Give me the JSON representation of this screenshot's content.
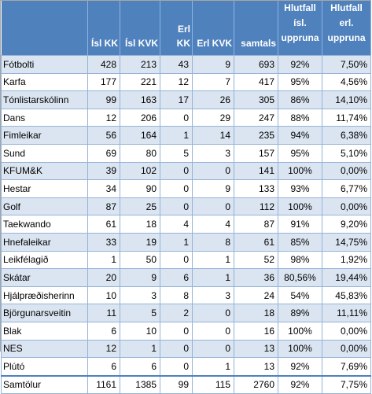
{
  "columns": [
    "",
    "Ísl KK",
    "Ísl KVK",
    "Erl KK",
    "Erl KVK",
    "samtals",
    "Hlutfall ísl. uppruna",
    "Hlutfall erl. uppruna"
  ],
  "col6_lines": [
    "Hlutfall",
    "ísl.",
    "uppruna"
  ],
  "col7_lines": [
    "Hlutfall",
    "erl.",
    "uppruna"
  ],
  "rows": [
    [
      "Fótbolti",
      "428",
      "213",
      "43",
      "9",
      "693",
      "92%",
      "7,50%"
    ],
    [
      "Karfa",
      "177",
      "221",
      "12",
      "7",
      "417",
      "95%",
      "4,56%"
    ],
    [
      "Tónlistarskólinn",
      "99",
      "163",
      "17",
      "26",
      "305",
      "86%",
      "14,10%"
    ],
    [
      "Dans",
      "12",
      "206",
      "0",
      "29",
      "247",
      "88%",
      "11,74%"
    ],
    [
      "Fimleikar",
      "56",
      "164",
      "1",
      "14",
      "235",
      "94%",
      "6,38%"
    ],
    [
      "Sund",
      "69",
      "80",
      "5",
      "3",
      "157",
      "95%",
      "5,10%"
    ],
    [
      "KFUM&K",
      "39",
      "102",
      "0",
      "0",
      "141",
      "100%",
      "0,00%"
    ],
    [
      "Hestar",
      "34",
      "90",
      "0",
      "9",
      "133",
      "93%",
      "6,77%"
    ],
    [
      "Golf",
      "87",
      "25",
      "0",
      "0",
      "112",
      "100%",
      "0,00%"
    ],
    [
      "Taekwando",
      "61",
      "18",
      "4",
      "4",
      "87",
      "91%",
      "9,20%"
    ],
    [
      "Hnefaleikar",
      "33",
      "19",
      "1",
      "8",
      "61",
      "85%",
      "14,75%"
    ],
    [
      "Leikfélagið",
      "1",
      "50",
      "0",
      "1",
      "52",
      "98%",
      "1,92%"
    ],
    [
      "Skátar",
      "20",
      "9",
      "6",
      "1",
      "36",
      "80,56%",
      "19,44%"
    ],
    [
      "Hjálpræðisherinn",
      "10",
      "3",
      "8",
      "3",
      "24",
      "54%",
      "45,83%"
    ],
    [
      "Björgunarsveitin",
      "11",
      "5",
      "2",
      "0",
      "18",
      "89%",
      "11,11%"
    ],
    [
      "Blak",
      "6",
      "10",
      "0",
      "0",
      "16",
      "100%",
      "0,00%"
    ],
    [
      "NES",
      "12",
      "1",
      "0",
      "0",
      "13",
      "100%",
      "0,00%"
    ],
    [
      "Plútó",
      "6",
      "6",
      "0",
      "1",
      "13",
      "92%",
      "7,69%"
    ]
  ],
  "total": [
    "Samtölur",
    "1161",
    "1385",
    "99",
    "115",
    "2760",
    "92%",
    "7,75%"
  ],
  "colors": {
    "header_bg": "#4f81bd",
    "header_text": "#ffffff",
    "band": "#dbe5f1",
    "grid": "#95b3d7"
  }
}
